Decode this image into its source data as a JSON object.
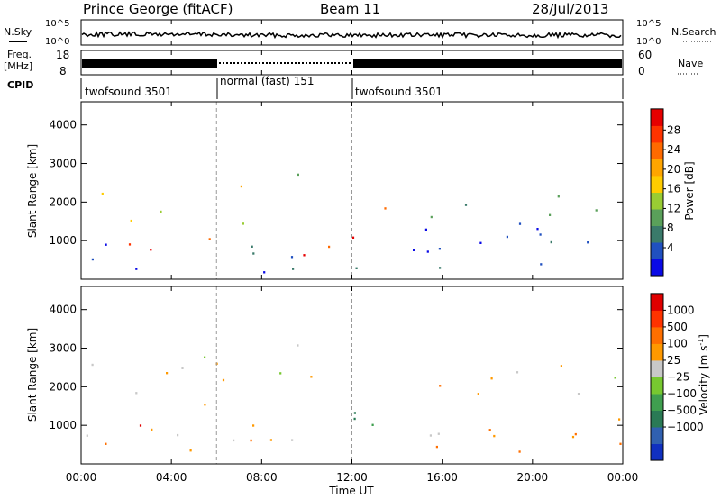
{
  "header": {
    "station": "Prince George (fitACF)",
    "beam": "Beam 11",
    "date": "28/Jul/2013"
  },
  "aux_panels": {
    "nsky_label": "N.Sky",
    "nsearch_label": "N.Search",
    "freq_label_1": "Freq.",
    "freq_label_2": "[MHz]",
    "nave_label": "Nave",
    "cpid_label": "CPID",
    "noise_ticks": [
      "10^5",
      "10^0"
    ],
    "noise_ticks_right": [
      "10^5",
      "10^0"
    ],
    "freq_ticks": [
      "18",
      "8"
    ],
    "nave_ticks": [
      "60",
      "0"
    ],
    "cpid_segments": [
      {
        "label": "twofsound 3501",
        "start": 0,
        "end": 6
      },
      {
        "label": "normal (fast) 151",
        "start": 6,
        "end": 12
      },
      {
        "label": "twofsound 3501",
        "start": 12,
        "end": 24
      }
    ]
  },
  "chart_data": [
    {
      "type": "heatmap",
      "name": "power-panel",
      "xlabel": "Time UT",
      "ylabel": "Slant Range [km]",
      "xlim": [
        0,
        24
      ],
      "ylim": [
        0,
        4600
      ],
      "x_ticks": [
        "00:00",
        "04:00",
        "08:00",
        "12:00",
        "16:00",
        "20:00",
        "00:00"
      ],
      "y_ticks": [
        1000,
        2000,
        3000,
        4000
      ],
      "colorbar": {
        "label": "Power [dB]",
        "ticks": [
          "4",
          "8",
          "12",
          "16",
          "20",
          "24",
          "28"
        ],
        "colors": [
          "#0a0ae6",
          "#2050c0",
          "#3a7a6a",
          "#5aa05a",
          "#99cc33",
          "#ffcc00",
          "#ffa500",
          "#ff6a00",
          "#ff3300",
          "#e60000"
        ]
      },
      "mode_change_times": [
        6,
        12
      ]
    },
    {
      "type": "heatmap",
      "name": "velocity-panel",
      "xlabel": "Time UT",
      "ylabel": "Slant Range [km]",
      "xlim": [
        0,
        24
      ],
      "ylim": [
        0,
        4600
      ],
      "x_ticks": [
        "00:00",
        "04:00",
        "08:00",
        "12:00",
        "16:00",
        "20:00",
        "00:00"
      ],
      "y_ticks": [
        1000,
        2000,
        3000,
        4000
      ],
      "colorbar": {
        "label": "Velocity [m s",
        "label_sup": "-1",
        "label_close": "]",
        "ticks": [
          "1000",
          "500",
          "100",
          "25",
          "−25",
          "−100",
          "−500",
          "−1000"
        ],
        "colors": [
          "#1030c0",
          "#3060b0",
          "#2a7a55",
          "#3f9f4f",
          "#77c830",
          "#c8c8c8",
          "#ff9900",
          "#ff6f00",
          "#ff3300",
          "#e00000"
        ]
      },
      "mode_change_times": [
        6,
        12
      ]
    }
  ]
}
